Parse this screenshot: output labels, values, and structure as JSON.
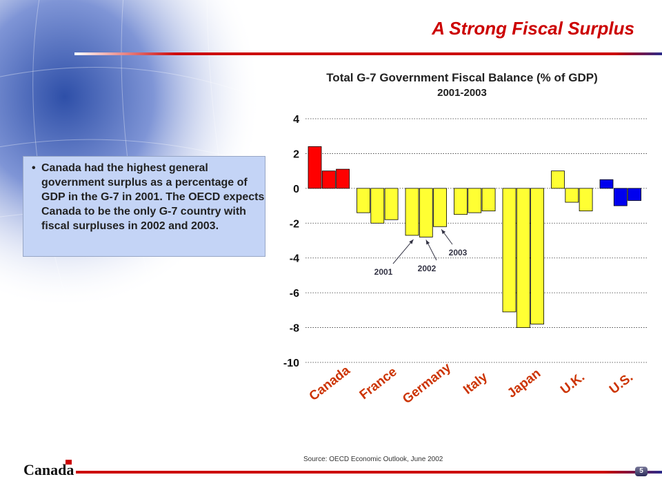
{
  "slide": {
    "title": "A Strong Fiscal Surplus",
    "bullet": "Canada had the highest general government surplus as a percentage of GDP in the G-7 in 2001. The OECD expects Canada to be the only G-7 country with fiscal surpluses in 2002 and 2003.",
    "source": "Source: OECD Economic Outlook, June 2002",
    "wordmark": "Canada",
    "page_number": "5"
  },
  "colors": {
    "canada": "#ff0000",
    "others": "#ffff33",
    "us": "#0000ee",
    "accent": "#cc0000"
  },
  "chart_data": {
    "type": "bar",
    "title": "Total G-7 Government Fiscal Balance (% of GDP)",
    "subtitle": "2001-2003",
    "categories": [
      "Canada",
      "France",
      "Germany",
      "Italy",
      "Japan",
      "U.K.",
      "U.S."
    ],
    "series": [
      {
        "name": "2001",
        "values": [
          2.4,
          -1.4,
          -2.7,
          -1.5,
          -7.1,
          1.0,
          0.5
        ]
      },
      {
        "name": "2002",
        "values": [
          1.0,
          -2.0,
          -2.8,
          -1.4,
          -8.0,
          -0.8,
          -1.0
        ]
      },
      {
        "name": "2003",
        "values": [
          1.1,
          -1.8,
          -2.2,
          -1.3,
          -7.8,
          -1.3,
          -0.7
        ]
      }
    ],
    "ylim": [
      -10,
      4
    ],
    "yticks": [
      4,
      2,
      0,
      -2,
      -4,
      -6,
      -8,
      -10
    ],
    "grid": true,
    "annotations": [
      "2001",
      "2002",
      "2003"
    ]
  }
}
